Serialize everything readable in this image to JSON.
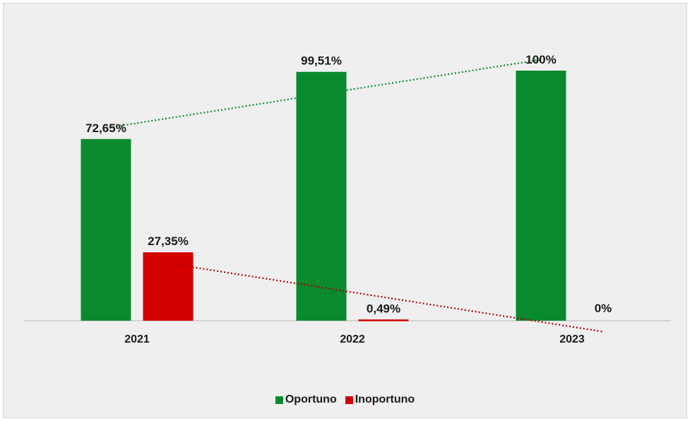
{
  "chart_data": {
    "type": "bar",
    "categories": [
      "2021",
      "2022",
      "2023"
    ],
    "series": [
      {
        "name": "Oportuno",
        "color": "#0a8a2e",
        "values": [
          72.65,
          99.51,
          100
        ],
        "labels": [
          "72,65%",
          "99,51%",
          "100%"
        ],
        "trendline": "linear dotted"
      },
      {
        "name": "Inoportuno",
        "color": "#d40000",
        "values": [
          27.35,
          0.49,
          0
        ],
        "labels": [
          "27,35%",
          "0,49%",
          "0%"
        ],
        "trendline": "linear dotted"
      }
    ],
    "ylim": [
      0,
      100
    ],
    "grid": false,
    "legend_position": "bottom"
  }
}
